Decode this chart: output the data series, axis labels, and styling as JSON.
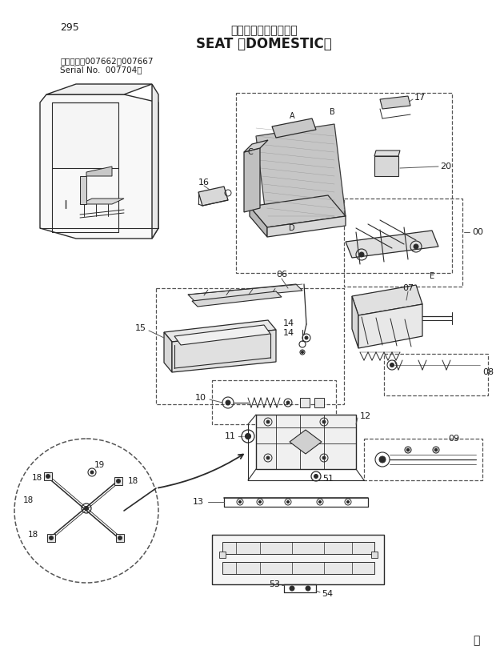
{
  "page_number": "295",
  "title_japanese": "シート　《国内仕様》",
  "title_english": "SEAT 〈DOMESTIC〉",
  "serial_line1": "適用号機　007662～007667",
  "serial_line2": "Serial No.  007704～",
  "background_color": "#ffffff",
  "text_color": "#1a1a1a",
  "line_color": "#2a2a2a",
  "dashed_color": "#555555",
  "page_marker": "ⓜ"
}
